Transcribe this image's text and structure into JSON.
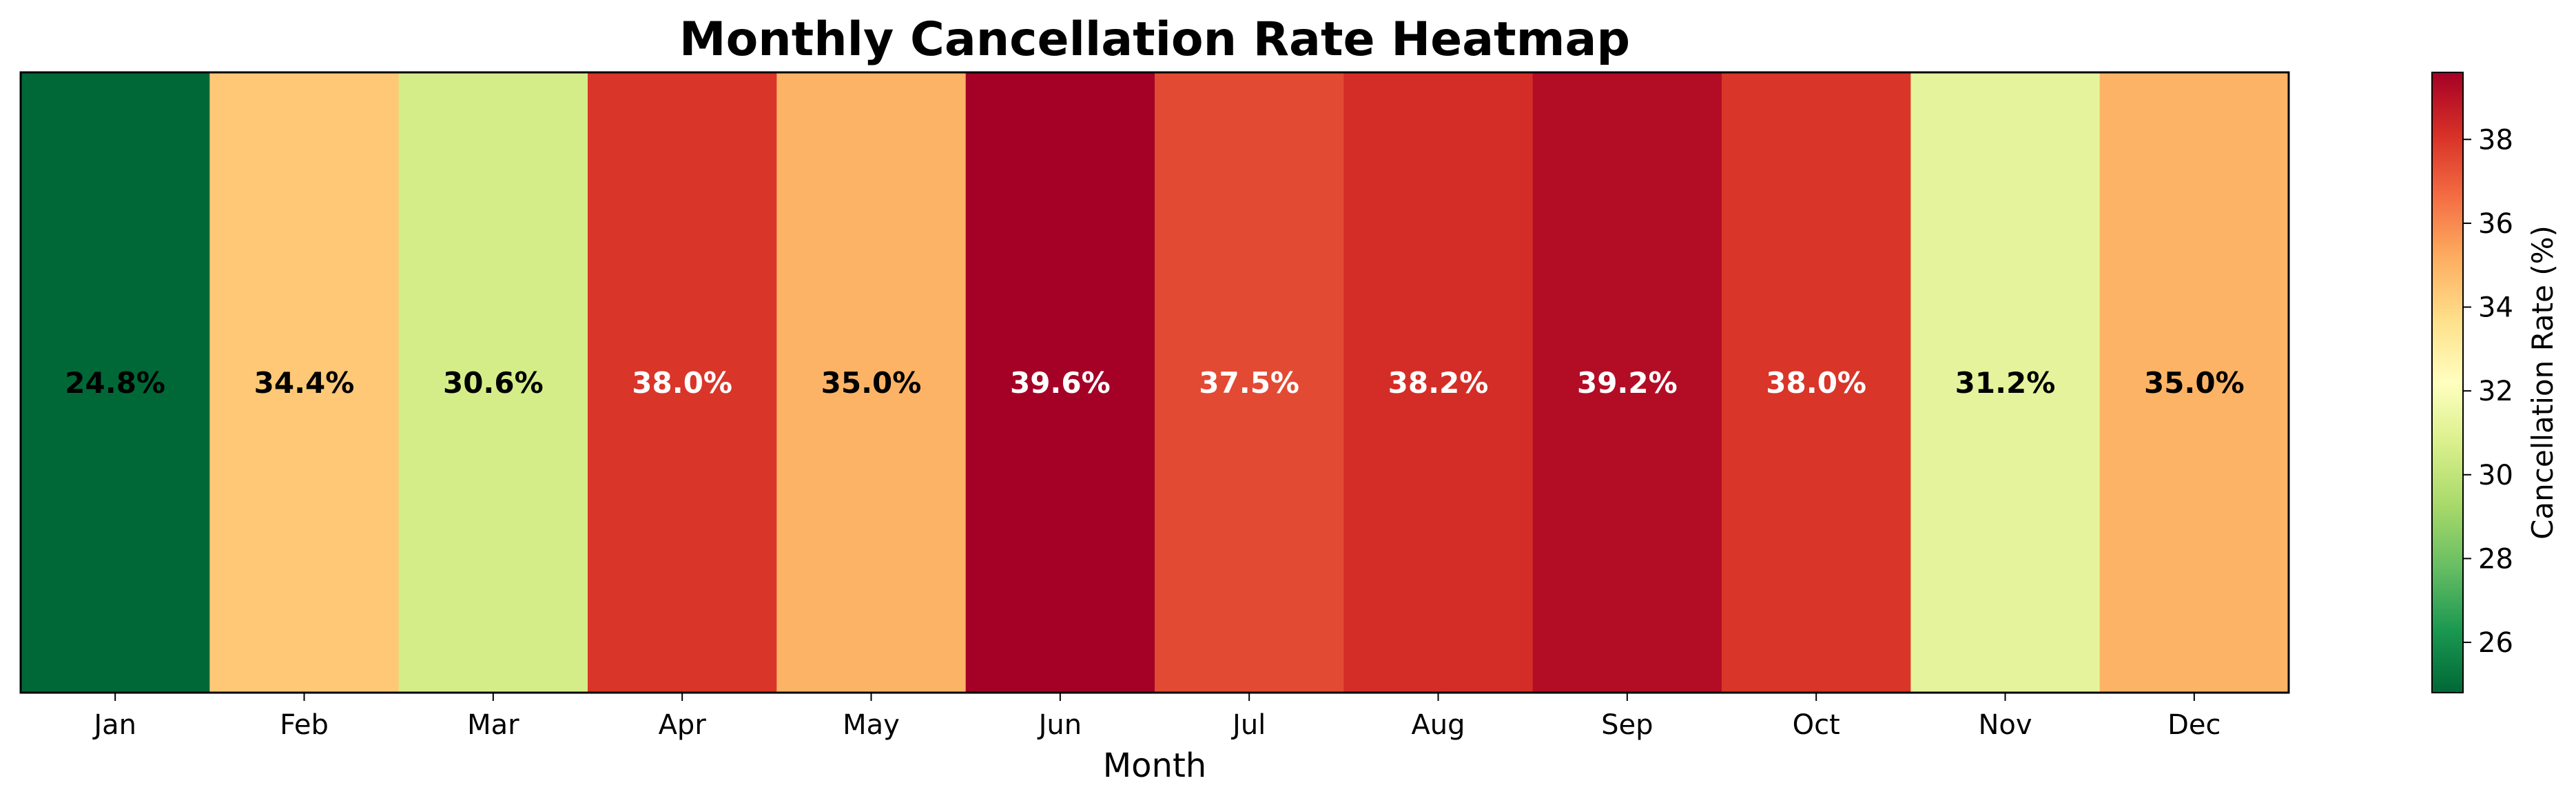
{
  "chart_data": {
    "type": "heatmap",
    "title": "Monthly Cancellation Rate Heatmap",
    "xlabel": "Month",
    "ylabel": "",
    "categories": [
      "Jan",
      "Feb",
      "Mar",
      "Apr",
      "May",
      "Jun",
      "Jul",
      "Aug",
      "Sep",
      "Oct",
      "Nov",
      "Dec"
    ],
    "values": [
      24.8,
      34.4,
      30.6,
      38.0,
      35.0,
      39.6,
      37.5,
      38.2,
      39.2,
      38.0,
      31.2,
      35.0
    ],
    "value_labels": [
      "24.8%",
      "34.4%",
      "30.6%",
      "38.0%",
      "35.0%",
      "39.6%",
      "37.5%",
      "38.2%",
      "39.2%",
      "38.0%",
      "31.2%",
      "35.0%"
    ],
    "colormap": "RdYlGn_r",
    "colorbar": {
      "label": "Cancellation Rate (%)",
      "range": [
        24.8,
        39.6
      ],
      "ticks": [
        26,
        28,
        30,
        32,
        34,
        36,
        38
      ],
      "tick_labels": [
        "26",
        "28",
        "30",
        "32",
        "34",
        "36",
        "38"
      ]
    },
    "grid": false,
    "legend": "none"
  }
}
